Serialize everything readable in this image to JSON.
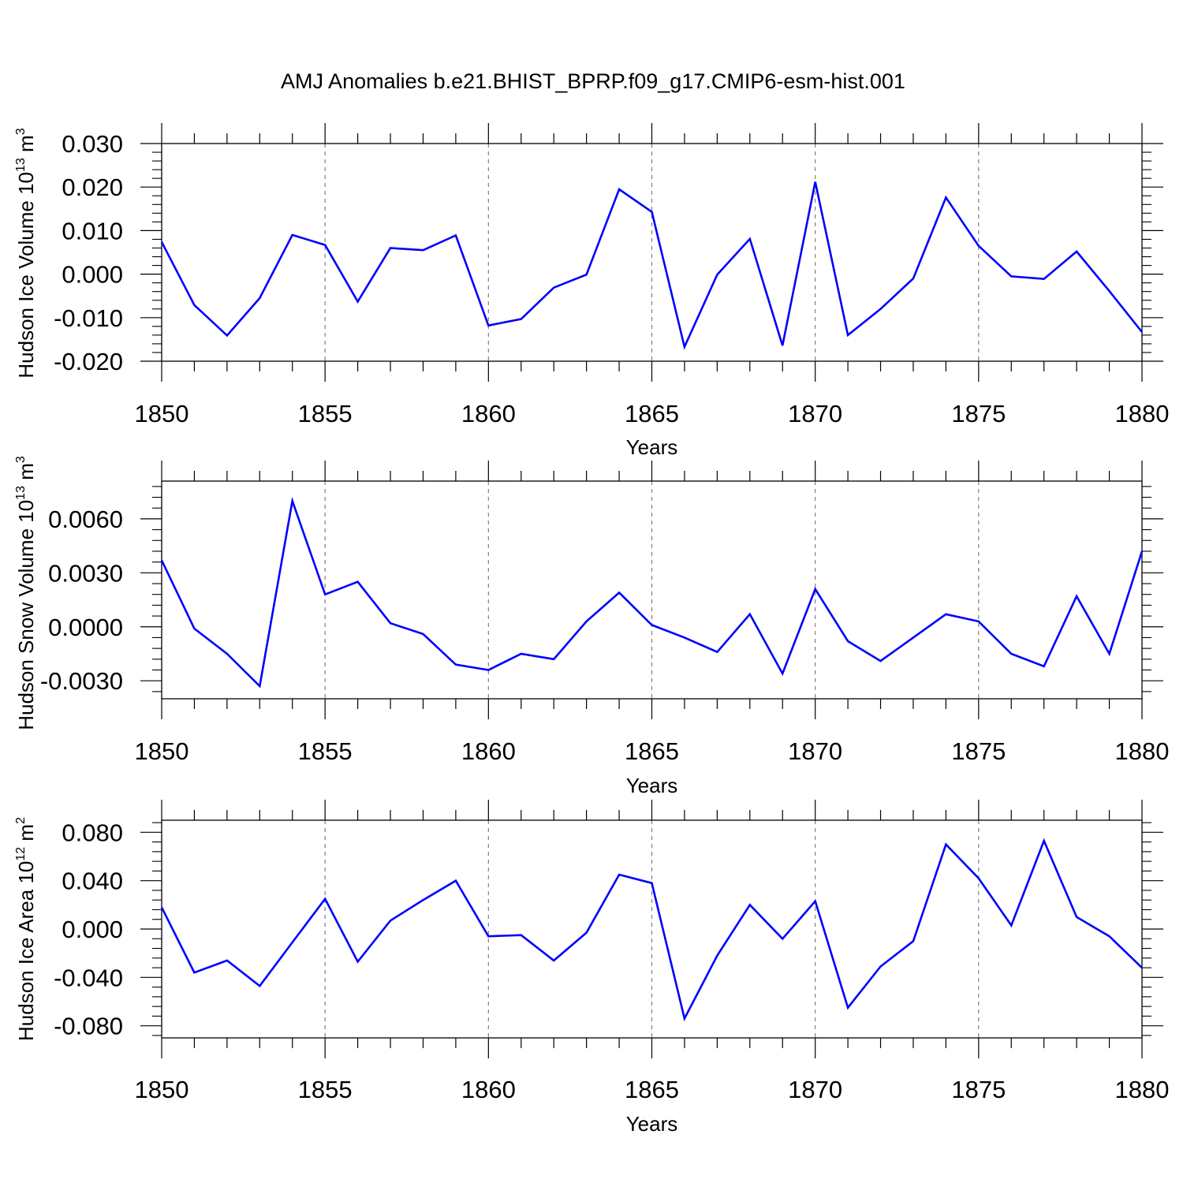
{
  "figure_title": "AMJ Anomalies b.e21.BHIST_BPRP.f09_g17.CMIP6-esm-hist.001",
  "colors": {
    "series": "#0000ff",
    "axis": "#000000",
    "grid": "#7f7f7f",
    "background": "#ffffff"
  },
  "chart_data": [
    {
      "type": "line",
      "title": "",
      "xlabel": "Years",
      "ylabel": "Hudson Ice Volume",
      "ylabel_unit": {
        "base": "10",
        "exp": "13",
        "unit": "m",
        "unit_exp": "3"
      },
      "xlim": [
        1850,
        1880
      ],
      "ylim": [
        -0.02,
        0.03
      ],
      "xticks": [
        1850,
        1855,
        1860,
        1865,
        1870,
        1875,
        1880
      ],
      "xtick_labels": [
        "1850",
        "1855",
        "1860",
        "1865",
        "1870",
        "1875",
        "1880"
      ],
      "yticks": [
        -0.02,
        -0.01,
        0.0,
        0.01,
        0.02,
        0.03
      ],
      "ytick_labels": [
        "-0.020",
        "-0.010",
        "0.000",
        "0.010",
        "0.020",
        "0.030"
      ],
      "grid": "vertical dashed at major x ticks",
      "series": [
        {
          "name": "Hudson Ice Volume",
          "x": [
            1850,
            1851,
            1852,
            1853,
            1854,
            1855,
            1856,
            1857,
            1858,
            1859,
            1860,
            1861,
            1862,
            1863,
            1864,
            1865,
            1866,
            1867,
            1868,
            1869,
            1870,
            1871,
            1872,
            1873,
            1874,
            1875,
            1876,
            1877,
            1878,
            1879,
            1880
          ],
          "values": [
            0.0074,
            -0.0071,
            -0.0141,
            -0.0055,
            0.009,
            0.0067,
            -0.0063,
            0.006,
            0.0055,
            0.0089,
            -0.0118,
            -0.0103,
            -0.0031,
            -0.0001,
            0.0195,
            0.0143,
            -0.0167,
            -0.0001,
            0.0081,
            -0.0164,
            0.0212,
            -0.014,
            -0.008,
            -0.001,
            0.0176,
            0.0065,
            -0.0005,
            -0.0011,
            0.0052,
            -0.0039,
            -0.0133
          ]
        }
      ]
    },
    {
      "type": "line",
      "title": "",
      "xlabel": "Years",
      "ylabel": "Hudson Snow Volume",
      "ylabel_unit": {
        "base": "10",
        "exp": "13",
        "unit": "m",
        "unit_exp": "3"
      },
      "xlim": [
        1850,
        1880
      ],
      "ylim": [
        -0.004,
        0.0081
      ],
      "xticks": [
        1850,
        1855,
        1860,
        1865,
        1870,
        1875,
        1880
      ],
      "xtick_labels": [
        "1850",
        "1855",
        "1860",
        "1865",
        "1870",
        "1875",
        "1880"
      ],
      "yticks": [
        -0.003,
        0.0,
        0.003,
        0.006
      ],
      "ytick_labels": [
        "-0.0030",
        "0.0000",
        "0.0030",
        "0.0060"
      ],
      "grid": "vertical dashed at major x ticks",
      "series": [
        {
          "name": "Hudson Snow Volume",
          "x": [
            1850,
            1851,
            1852,
            1853,
            1854,
            1855,
            1856,
            1857,
            1858,
            1859,
            1860,
            1861,
            1862,
            1863,
            1864,
            1865,
            1866,
            1867,
            1868,
            1869,
            1870,
            1871,
            1872,
            1873,
            1874,
            1875,
            1876,
            1877,
            1878,
            1879,
            1880
          ],
          "values": [
            0.0037,
            -0.0001,
            -0.0015,
            -0.0033,
            0.007,
            0.0018,
            0.0025,
            0.0002,
            -0.0004,
            -0.0021,
            -0.0024,
            -0.0015,
            -0.0018,
            0.0003,
            0.0019,
            0.0001,
            -0.0006,
            -0.0014,
            0.0007,
            -0.0026,
            0.0021,
            -0.0008,
            -0.0019,
            -0.0006,
            0.0007,
            0.0003,
            -0.0015,
            -0.0022,
            0.0017,
            -0.0015,
            0.0042
          ]
        }
      ]
    },
    {
      "type": "line",
      "title": "",
      "xlabel": "Years",
      "ylabel": "Hudson Ice Area",
      "ylabel_unit": {
        "base": "10",
        "exp": "12",
        "unit": "m",
        "unit_exp": "2"
      },
      "xlim": [
        1850,
        1880
      ],
      "ylim": [
        -0.09,
        0.09
      ],
      "xticks": [
        1850,
        1855,
        1860,
        1865,
        1870,
        1875,
        1880
      ],
      "xtick_labels": [
        "1850",
        "1855",
        "1860",
        "1865",
        "1870",
        "1875",
        "1880"
      ],
      "yticks": [
        -0.08,
        -0.04,
        0.0,
        0.04,
        0.08
      ],
      "ytick_labels": [
        "-0.080",
        "-0.040",
        "0.000",
        "0.040",
        "0.080"
      ],
      "grid": "vertical dashed at major x ticks",
      "series": [
        {
          "name": "Hudson Ice Area",
          "x": [
            1850,
            1851,
            1852,
            1853,
            1854,
            1855,
            1856,
            1857,
            1858,
            1859,
            1860,
            1861,
            1862,
            1863,
            1864,
            1865,
            1866,
            1867,
            1868,
            1869,
            1870,
            1871,
            1872,
            1873,
            1874,
            1875,
            1876,
            1877,
            1878,
            1879,
            1880
          ],
          "values": [
            0.018,
            -0.036,
            -0.026,
            -0.047,
            -0.011,
            0.025,
            -0.027,
            0.007,
            0.024,
            0.04,
            -0.006,
            -0.005,
            -0.026,
            -0.003,
            0.045,
            0.038,
            -0.074,
            -0.022,
            0.02,
            -0.008,
            0.023,
            -0.065,
            -0.031,
            -0.01,
            0.07,
            0.042,
            0.003,
            0.073,
            0.01,
            -0.006,
            -0.032
          ]
        }
      ]
    }
  ]
}
